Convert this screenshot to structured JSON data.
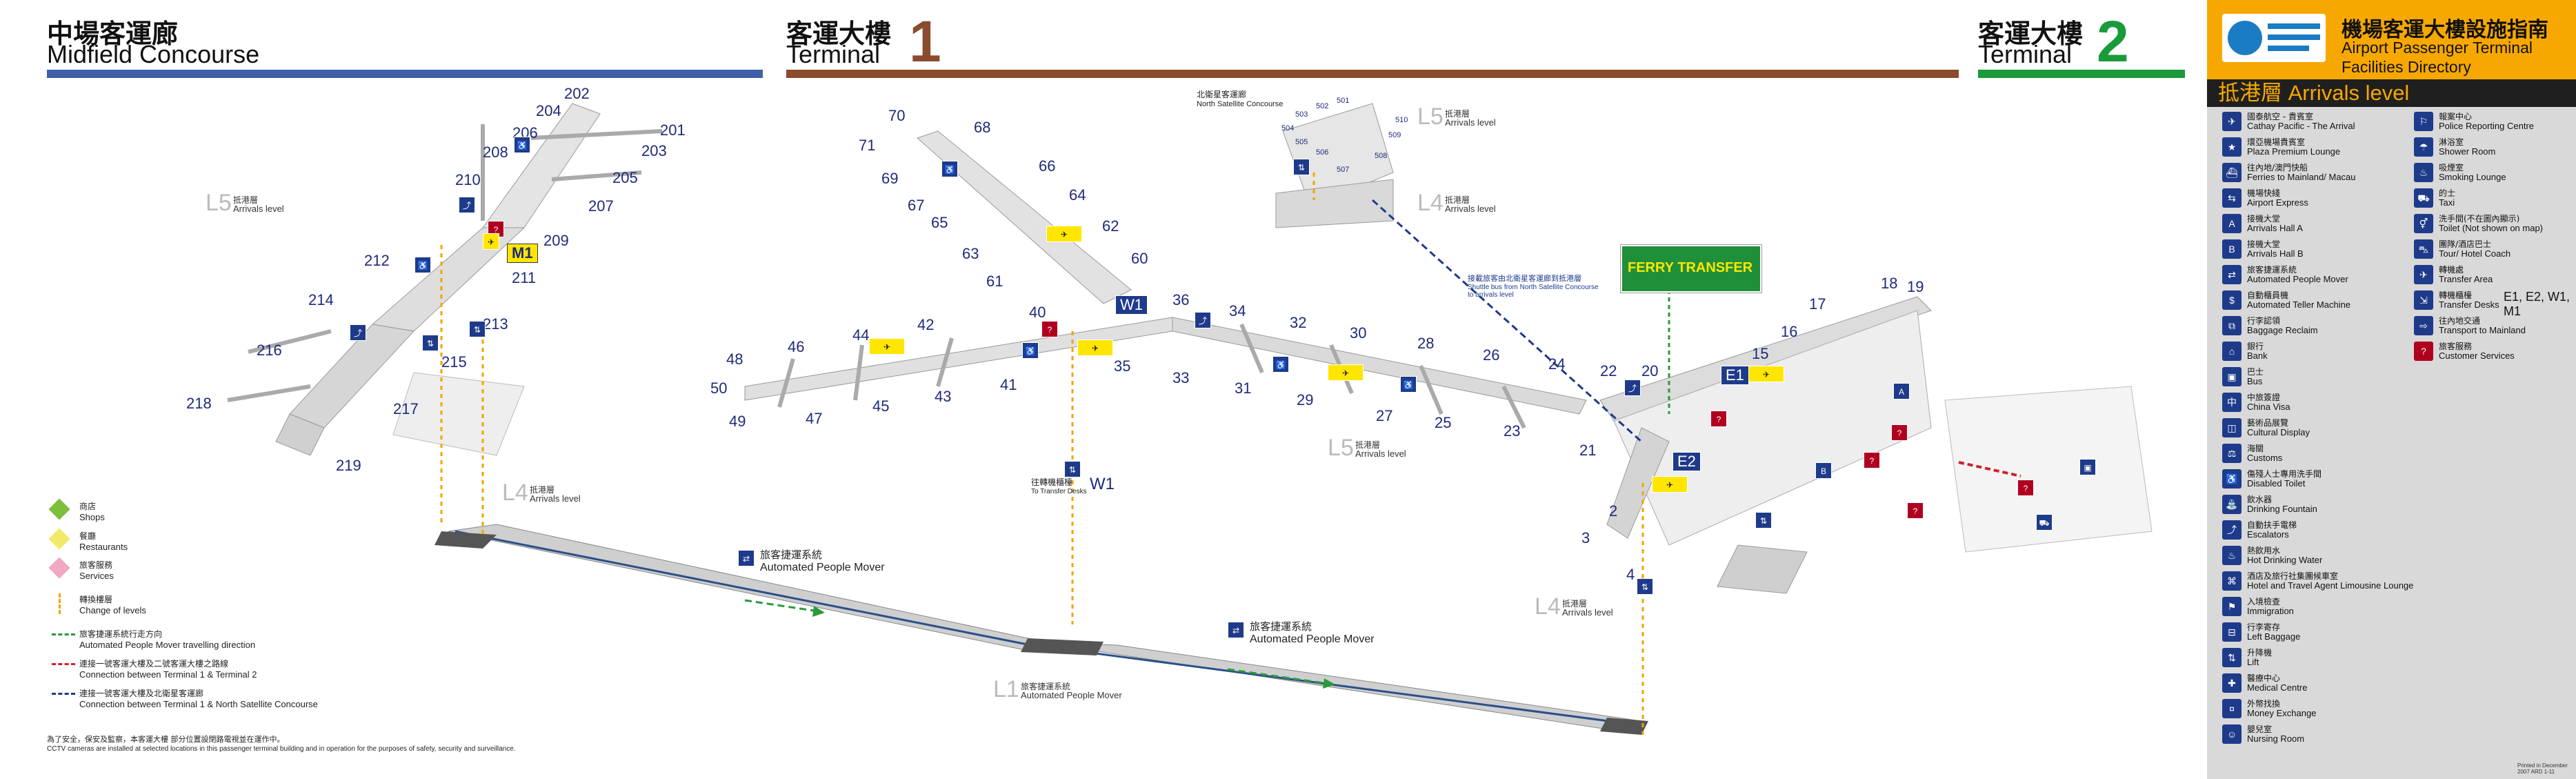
{
  "headers": {
    "midfield": {
      "zh": "中場客運廊",
      "en": "Midfield Concourse",
      "color": "#3f5fa8"
    },
    "terminal1": {
      "zh": "客運大樓",
      "en": "Terminal",
      "num": "1",
      "color": "#8a4b2e"
    },
    "terminal2": {
      "zh": "客運大樓",
      "en": "Terminal",
      "num": "2",
      "color": "#1a9a3a"
    }
  },
  "directory": {
    "title_zh": "機場客運大樓設施指南",
    "title_en1": "Airport Passenger Terminal",
    "title_en2": "Facilities Directory",
    "level": "抵港層 Arrivals level",
    "left_items": [
      {
        "icon": "✈",
        "zh": "國泰航空 - 貴賓室",
        "en": "Cathay Pacific - The Arrival"
      },
      {
        "icon": "★",
        "zh": "環亞機場貴賓室",
        "en": "Plaza Premium Lounge"
      },
      {
        "icon": "⛴",
        "zh": "往內地/澳門快船",
        "en": "Ferries to Mainland/ Macau"
      },
      {
        "icon": "⇆",
        "zh": "機場快綫",
        "en": "Airport Express"
      },
      {
        "icon": "A",
        "zh": "接機大堂",
        "en": "Arrivals Hall A"
      },
      {
        "icon": "B",
        "zh": "接機大堂",
        "en": "Arrivals Hall B"
      },
      {
        "icon": "⇄",
        "zh": "旅客捷運系統",
        "en": "Automated People Mover"
      },
      {
        "icon": "$",
        "zh": "自動櫃員機",
        "en": "Automated Teller Machine"
      },
      {
        "icon": "⧉",
        "zh": "行李認領",
        "en": "Baggage Reclaim"
      },
      {
        "icon": "⌂",
        "zh": "銀行",
        "en": "Bank"
      },
      {
        "icon": "▣",
        "zh": "巴士",
        "en": "Bus"
      },
      {
        "icon": "中",
        "zh": "中旅簽證",
        "en": "China Visa"
      },
      {
        "icon": "◫",
        "zh": "藝術品展覽",
        "en": "Cultural Display"
      },
      {
        "icon": "⚖",
        "zh": "海關",
        "en": "Customs"
      },
      {
        "icon": "♿",
        "zh": "傷殘人士專用洗手間",
        "en": "Disabled Toilet"
      },
      {
        "icon": "⛲",
        "zh": "飲水器",
        "en": "Drinking Fountain"
      },
      {
        "icon": "⤴",
        "zh": "自動扶手電梯",
        "en": "Escalators"
      },
      {
        "icon": "♨",
        "zh": "熱飲用水",
        "en": "Hot Drinking Water"
      },
      {
        "icon": "⌘",
        "zh": "酒店及旅行社集團候車室",
        "en": "Hotel and Travel Agent Limousine Lounge"
      },
      {
        "icon": "⚑",
        "zh": "入境檢查",
        "en": "Immigration"
      },
      {
        "icon": "⊟",
        "zh": "行李寄存",
        "en": "Left Baggage"
      },
      {
        "icon": "⇅",
        "zh": "升降機",
        "en": "Lift"
      },
      {
        "icon": "✚",
        "zh": "醫療中心",
        "en": "Medical Centre"
      },
      {
        "icon": "¤",
        "zh": "外幣找換",
        "en": "Money Exchange"
      },
      {
        "icon": "☺",
        "zh": "嬰兒室",
        "en": "Nursing Room"
      }
    ],
    "right_items": [
      {
        "icon": "⚐",
        "zh": "報案中心",
        "en": "Police Reporting Centre"
      },
      {
        "icon": "☂",
        "zh": "淋浴室",
        "en": "Shower Room"
      },
      {
        "icon": "♨",
        "zh": "吸煙室",
        "en": "Smoking Lounge"
      },
      {
        "icon": "⛟",
        "zh": "的士",
        "en": "Taxi"
      },
      {
        "icon": "⚥",
        "zh": "洗手間(不在圖內顯示)",
        "en": "Toilet (Not shown on map)"
      },
      {
        "icon": "⛍",
        "zh": "團隊/酒店巴士",
        "en": "Tour/ Hotel Coach"
      },
      {
        "icon": "✈",
        "zh": "轉機處",
        "en": "Transfer Area"
      },
      {
        "icon": "⇲",
        "zh": "轉機櫃檯",
        "en": "Transfer Desks"
      },
      {
        "icon": "⇨",
        "zh": "往內地交通",
        "en": "Transport to Mainland"
      },
      {
        "icon": "?",
        "zh": "旅客服務",
        "en": "Customer Services"
      }
    ],
    "transfer_desks_codes": "E1, E2, W1, M1",
    "footer": "Printed in December 2007 ARD 1-11"
  },
  "levels": [
    {
      "label": "L5",
      "zh": "抵港層",
      "en": "Arrivals level"
    },
    {
      "label": "L4",
      "zh": "抵港層",
      "en": "Arrivals level"
    },
    {
      "label": "L5",
      "zh": "抵港層",
      "en": "Arrivals level"
    },
    {
      "label": "L4",
      "zh": "抵港層",
      "en": "Arrivals level"
    },
    {
      "label": "L5",
      "zh": "抵港層",
      "en": "Arrivals level"
    },
    {
      "label": "L4",
      "zh": "抵港層",
      "en": "Arrivals level"
    },
    {
      "label": "L4",
      "zh": "抵港層",
      "en": "Arrivals level"
    },
    {
      "label": "L1",
      "zh": "旅客捷運系統",
      "en": "Automated People Mover"
    }
  ],
  "labels": {
    "north_satellite_zh": "北衛星客運廊",
    "north_satellite_en": "North Satellite Concourse",
    "apm1_zh": "旅客捷運系統",
    "apm1_en": "Automated People Mover",
    "apm2_zh": "旅客捷運系統",
    "apm2_en": "Automated People Mover",
    "transfer_w1_zh": "往轉機櫃檯",
    "transfer_w1_en": "To Transfer Desks",
    "transfer_w1_code": "W1",
    "shuttle_zh": "接載旅客由北衛星客運廊到抵港層",
    "shuttle_en": "Shuttle bus from North Satellite Concourse to arrivals level",
    "ferry_sign": "FERRY TRANSFER",
    "m1": "M1",
    "w1": "W1",
    "e1": "E1",
    "e2": "E2"
  },
  "gates": {
    "midfield": [
      "201",
      "202",
      "203",
      "204",
      "205",
      "206",
      "207",
      "208",
      "209",
      "210",
      "211",
      "212",
      "213",
      "214",
      "215",
      "216",
      "217",
      "218",
      "219"
    ],
    "terminal1": [
      "2",
      "3",
      "4",
      "15",
      "16",
      "17",
      "18",
      "19",
      "20",
      "21",
      "22",
      "23",
      "24",
      "25",
      "26",
      "27",
      "28",
      "29",
      "30",
      "31",
      "32",
      "33",
      "34",
      "35",
      "36",
      "40",
      "41",
      "42",
      "43",
      "44",
      "45",
      "46",
      "47",
      "48",
      "49",
      "50",
      "60",
      "61",
      "62",
      "63",
      "64",
      "65",
      "66",
      "67",
      "68",
      "69",
      "70",
      "71"
    ],
    "satellite": [
      "501",
      "502",
      "503",
      "504",
      "505",
      "506",
      "507",
      "508",
      "509",
      "510"
    ]
  },
  "bottom_legend": [
    {
      "icon": "shop",
      "zh": "商店",
      "en": "Shops",
      "color": "#7cbf3a"
    },
    {
      "icon": "restaurant",
      "zh": "餐廳",
      "en": "Restaurants",
      "color": "#f2e86a"
    },
    {
      "icon": "services",
      "zh": "旅客服務",
      "en": "Services",
      "color": "#f2a7c3"
    },
    {
      "icon": "level-change",
      "zh": "轉換樓層",
      "en": "Change of levels",
      "color": "#f2a400"
    },
    {
      "icon": "apm-direction",
      "zh": "旅客捷運系統行走方向",
      "en": "Automated People Mover travelling direction",
      "color": "#2a9a3a"
    },
    {
      "icon": "t1-t2",
      "zh": "連接一號客運大樓及二號客運大樓之路線",
      "en": "Connection between Terminal 1 & Terminal 2",
      "color": "#d0202a"
    },
    {
      "icon": "t1-nsc",
      "zh": "連接一號客運大樓及北衛星客運廊",
      "en": "Connection between Terminal 1 & North Satellite Concourse",
      "color": "#1e3a8a"
    }
  ],
  "cctv_zh": "為了安全，保安及監察，本客運大樓 部分位置設閉路電視並在運作中。",
  "cctv_en": "CCTV cameras are installed at selected locations in this passenger terminal building and in operation for the purposes of safety, security and surveillance."
}
